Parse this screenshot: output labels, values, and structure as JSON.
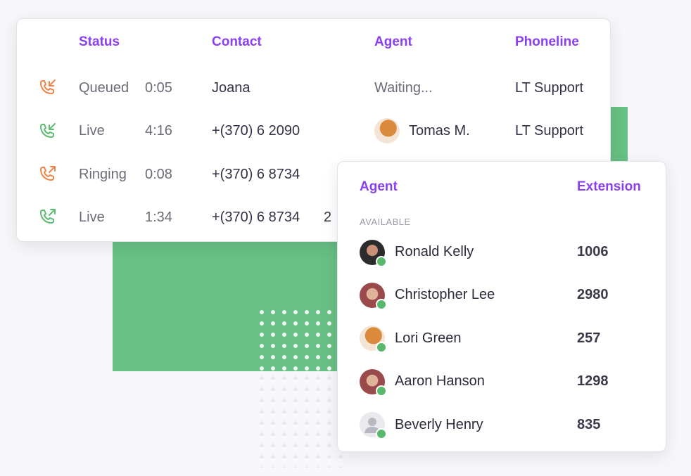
{
  "calls_table": {
    "headers": {
      "status": "Status",
      "contact": "Contact",
      "agent": "Agent",
      "phoneline": "Phoneline"
    },
    "rows": [
      {
        "direction": "incoming",
        "icon": "phone-incoming-icon",
        "icon_color": "#f0854b",
        "status": "Queued",
        "duration": "0:05",
        "contact": "Joana",
        "agent": "Waiting...",
        "phoneline": "LT Support"
      },
      {
        "direction": "incoming",
        "icon": "phone-incoming-icon",
        "icon_color": "#5dbb72",
        "status": "Live",
        "duration": "4:16",
        "contact": "+(370) 6 2090",
        "agent": "Tomas M.",
        "phoneline": "LT Support"
      },
      {
        "direction": "outgoing",
        "icon": "phone-outgoing-icon",
        "icon_color": "#f0854b",
        "status": "Ringing",
        "duration": "0:08",
        "contact": "+(370) 6 8734",
        "agent": "",
        "phoneline": ""
      },
      {
        "direction": "outgoing",
        "icon": "phone-outgoing-icon",
        "icon_color": "#5dbb72",
        "status": "Live",
        "duration": "1:34",
        "contact": "+(370) 6 8734",
        "contact_suffix": "2",
        "agent": "",
        "phoneline": ""
      }
    ]
  },
  "agents_panel": {
    "headers": {
      "agent": "Agent",
      "extension": "Extension"
    },
    "section_label": "AVAILABLE",
    "agents": [
      {
        "name": "Ronald Kelly",
        "extension": "1006",
        "avatar": "dark"
      },
      {
        "name": "Christopher Lee",
        "extension": "2980",
        "avatar": "warm"
      },
      {
        "name": "Lori Green",
        "extension": "257",
        "avatar": "orange"
      },
      {
        "name": "Aaron Hanson",
        "extension": "1298",
        "avatar": "warm"
      },
      {
        "name": "Beverly Henry",
        "extension": "835",
        "avatar": "placeholder"
      }
    ]
  },
  "colors": {
    "accent_purple": "#8a3ff0",
    "green_background": "#67c084",
    "online_green": "#58b96d",
    "missed_orange": "#f0854b"
  }
}
